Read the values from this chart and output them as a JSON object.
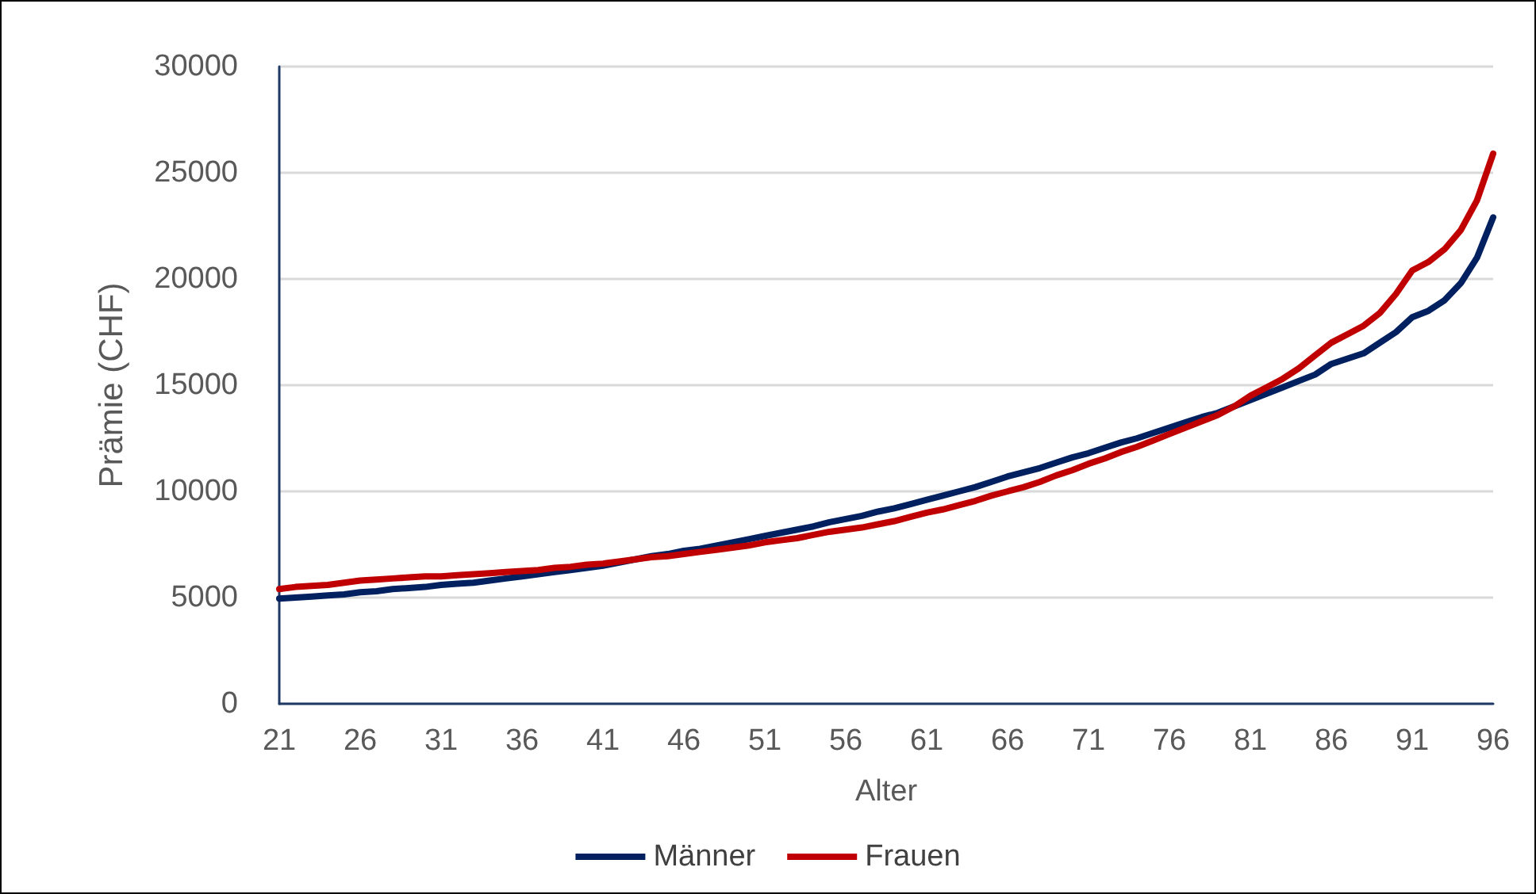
{
  "chart_data": {
    "type": "line",
    "xlabel": "Alter",
    "ylabel": "Prämie (CHF)",
    "categories": [
      "21",
      null,
      null,
      null,
      null,
      "26",
      null,
      null,
      null,
      null,
      "31",
      null,
      null,
      null,
      null,
      "36",
      null,
      null,
      null,
      null,
      "41",
      null,
      null,
      null,
      null,
      "46",
      null,
      null,
      null,
      null,
      "51",
      null,
      null,
      null,
      null,
      "56",
      null,
      null,
      null,
      null,
      "61",
      null,
      null,
      null,
      null,
      "66",
      null,
      null,
      null,
      null,
      "71",
      null,
      null,
      null,
      null,
      "76",
      null,
      null,
      null,
      null,
      "81",
      null,
      null,
      null,
      null,
      "86",
      null,
      null,
      null,
      null,
      "91",
      null,
      null,
      null,
      null,
      "96"
    ],
    "series": [
      {
        "name": "Männer",
        "color": "#002060",
        "values": [
          4950,
          5000,
          5050,
          5100,
          5150,
          5250,
          5300,
          5400,
          5450,
          5500,
          5600,
          5650,
          5700,
          5800,
          5900,
          6000,
          6100,
          6200,
          6300,
          6400,
          6500,
          6650,
          6800,
          6950,
          7050,
          7200,
          7300,
          7450,
          7600,
          7750,
          7900,
          8050,
          8200,
          8350,
          8550,
          8700,
          8850,
          9050,
          9200,
          9400,
          9600,
          9800,
          10000,
          10200,
          10450,
          10700,
          10900,
          11100,
          11350,
          11600,
          11800,
          12050,
          12300,
          12500,
          12750,
          13000,
          13250,
          13500,
          13700,
          14000,
          14300,
          14600,
          14900,
          15200,
          15500,
          16000,
          16250,
          16500,
          17000,
          17500,
          18200,
          18500,
          19000,
          19800,
          21000,
          22900
        ]
      },
      {
        "name": "Frauen",
        "color": "#c00000",
        "values": [
          5400,
          5500,
          5550,
          5600,
          5700,
          5800,
          5850,
          5900,
          5950,
          6000,
          6000,
          6050,
          6100,
          6150,
          6200,
          6250,
          6300,
          6400,
          6450,
          6550,
          6600,
          6700,
          6800,
          6900,
          6950,
          7050,
          7150,
          7250,
          7350,
          7450,
          7600,
          7700,
          7800,
          7950,
          8100,
          8200,
          8300,
          8450,
          8600,
          8800,
          9000,
          9150,
          9350,
          9550,
          9800,
          10000,
          10200,
          10450,
          10750,
          11000,
          11300,
          11550,
          11850,
          12100,
          12400,
          12700,
          13000,
          13300,
          13600,
          14000,
          14500,
          14900,
          15300,
          15800,
          16400,
          17000,
          17400,
          17800,
          18400,
          19300,
          20400,
          20800,
          21400,
          22300,
          23700,
          25900
        ]
      }
    ],
    "ylim": [
      0,
      30000
    ],
    "yticks": [
      0,
      5000,
      10000,
      15000,
      20000,
      25000,
      30000
    ],
    "grid": "y",
    "legend": "bottom",
    "marker": "none",
    "line_style": "solid"
  }
}
